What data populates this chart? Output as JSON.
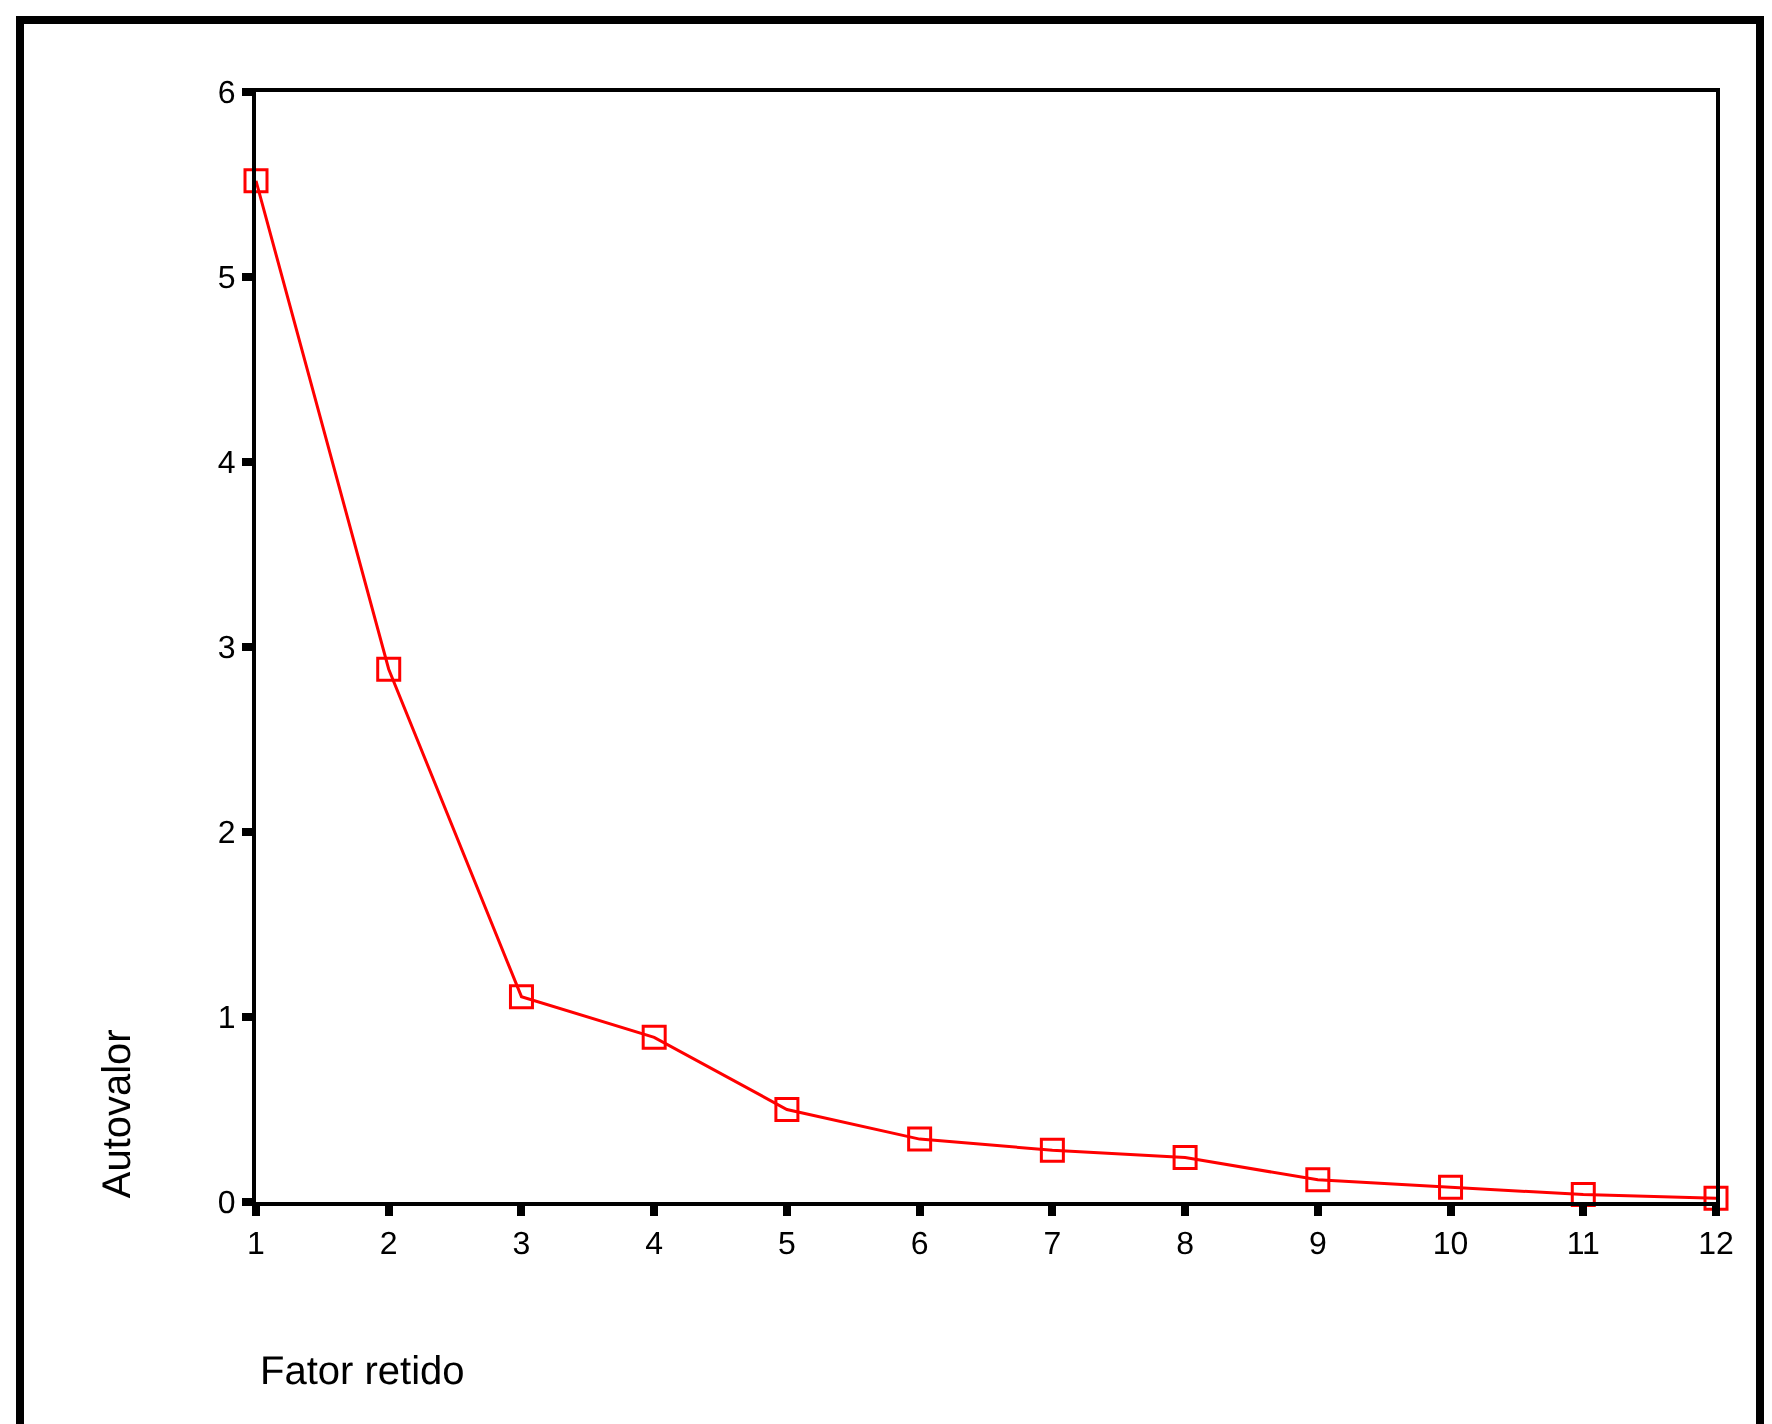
{
  "chart_data": {
    "type": "line",
    "xlabel": "Fator retido",
    "ylabel": "Autovalor",
    "x": [
      1,
      2,
      3,
      4,
      5,
      6,
      7,
      8,
      9,
      10,
      11,
      12
    ],
    "series": [
      {
        "color": "#ff0000",
        "values": [
          5.52,
          2.88,
          1.11,
          0.89,
          0.5,
          0.34,
          0.28,
          0.24,
          0.12,
          0.08,
          0.04,
          0.02
        ]
      }
    ],
    "xlim": [
      1,
      12
    ],
    "xticks": [
      1,
      2,
      3,
      4,
      5,
      6,
      7,
      8,
      9,
      10,
      11,
      12
    ],
    "ylim": [
      0,
      6
    ],
    "yticks": [
      0,
      1,
      2,
      3,
      4,
      5,
      6
    ],
    "grid": false,
    "marker": "square",
    "line_style": "solid"
  }
}
